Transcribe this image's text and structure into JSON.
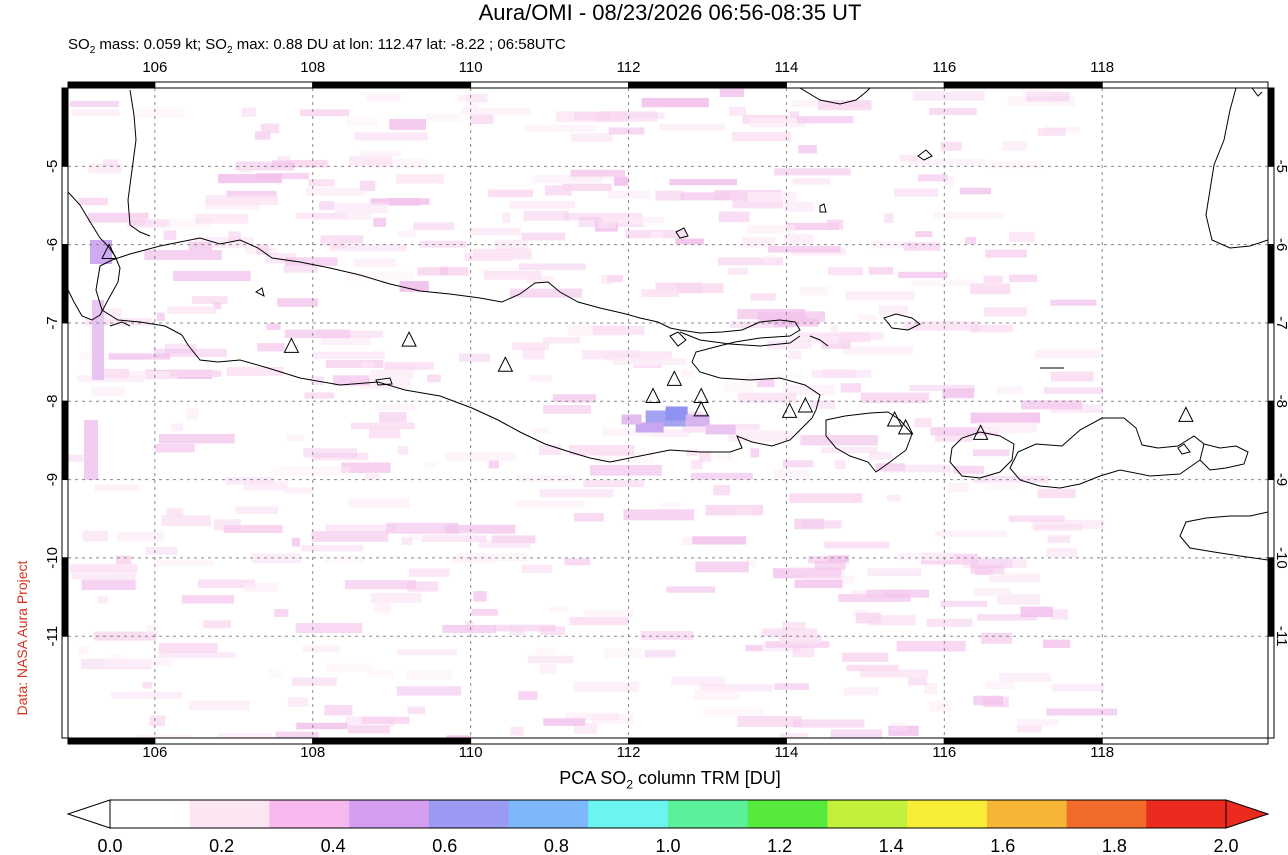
{
  "title": "Aura/OMI - 08/23/2026 06:56-08:35 UT",
  "subtitle": {
    "mass_prefix": "SO",
    "mass_sub": "2",
    "mass_text": " mass: 0.059 kt; SO",
    "max_sub": "2",
    "max_text": " max: 0.88 DU at lon: 112.47 lat: -8.22 ; 06:58UTC"
  },
  "credit": "Data: NASA Aura Project",
  "colorbar": {
    "title_prefix": "PCA SO",
    "title_sub": "2",
    "title_suffix": " column TRM [DU]",
    "ticks": [
      "0.0",
      "0.2",
      "0.4",
      "0.6",
      "0.8",
      "1.0",
      "1.2",
      "1.4",
      "1.6",
      "1.8",
      "2.0"
    ],
    "colors": [
      "#ffffff",
      "#fde6f4",
      "#f7b8ee",
      "#d59ef0",
      "#9a9af3",
      "#7fb7fb",
      "#6af5f0",
      "#5cf09a",
      "#56ea3f",
      "#c3f03a",
      "#f8ee38",
      "#f5b636",
      "#f26b2a",
      "#eb2b1e"
    ]
  },
  "map": {
    "lon_ticks": [
      "106",
      "108",
      "110",
      "112",
      "114",
      "116",
      "118"
    ],
    "lat_ticks": [
      "-5",
      "-6",
      "-7",
      "-8",
      "-9",
      "-10",
      "-11"
    ],
    "lon_range": [
      104.9,
      120.1
    ],
    "lat_range": [
      -12.3,
      -4.0
    ],
    "so2_max": {
      "lon": 112.47,
      "lat": -8.22,
      "value": 0.88
    },
    "volcanoes": [
      {
        "lon": 105.42,
        "lat": -6.1
      },
      {
        "lon": 107.73,
        "lat": -7.3
      },
      {
        "lon": 109.22,
        "lat": -7.22
      },
      {
        "lon": 110.44,
        "lat": -7.54
      },
      {
        "lon": 112.31,
        "lat": -7.94
      },
      {
        "lon": 112.58,
        "lat": -7.72
      },
      {
        "lon": 112.92,
        "lat": -7.94
      },
      {
        "lon": 112.92,
        "lat": -8.11
      },
      {
        "lon": 114.04,
        "lat": -8.13
      },
      {
        "lon": 114.24,
        "lat": -8.06
      },
      {
        "lon": 115.37,
        "lat": -8.24
      },
      {
        "lon": 115.51,
        "lat": -8.34
      },
      {
        "lon": 116.46,
        "lat": -8.41
      },
      {
        "lon": 119.06,
        "lat": -8.18
      }
    ]
  }
}
